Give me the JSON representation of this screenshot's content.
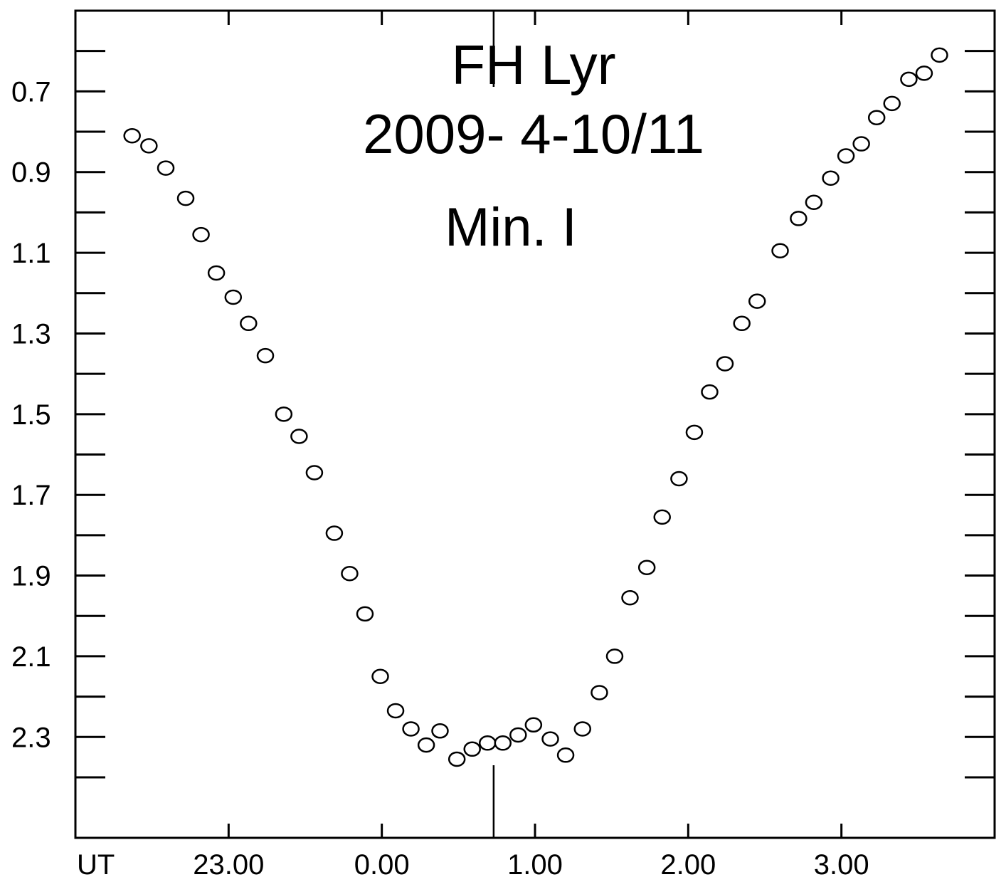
{
  "chart_data": {
    "type": "scatter",
    "title": "FH Lyr",
    "subtitle": "2009- 4-10/11",
    "annotation": "Min. I",
    "xlabel": "UT",
    "ylabel": "",
    "x_tick_labels": [
      "23.00",
      "0.00",
      "1.00",
      "2.00",
      "3.00"
    ],
    "x_tick_values": [
      23.0,
      24.0,
      25.0,
      26.0,
      27.0
    ],
    "y_tick_labels": [
      "0.7",
      "0.9",
      "1.1",
      "1.3",
      "1.5",
      "1.7",
      "1.9",
      "2.1",
      "2.3"
    ],
    "y_tick_values": [
      0.7,
      0.9,
      1.1,
      1.3,
      1.5,
      1.7,
      1.9,
      2.1,
      2.3
    ],
    "xlim": [
      22.0,
      28.0
    ],
    "ylim": [
      0.5,
      2.55
    ],
    "y_inverted": true,
    "minimum_marker_ut": 24.73,
    "marker_style": "open-circle",
    "grid": false,
    "series": [
      {
        "points": [
          [
            22.37,
            0.81
          ],
          [
            22.48,
            0.835
          ],
          [
            22.59,
            0.89
          ],
          [
            22.72,
            0.965
          ],
          [
            22.82,
            1.055
          ],
          [
            22.92,
            1.15
          ],
          [
            23.03,
            1.21
          ],
          [
            23.13,
            1.275
          ],
          [
            23.24,
            1.355
          ],
          [
            23.36,
            1.5
          ],
          [
            23.46,
            1.555
          ],
          [
            23.56,
            1.645
          ],
          [
            23.69,
            1.795
          ],
          [
            23.79,
            1.895
          ],
          [
            23.89,
            1.995
          ],
          [
            23.99,
            2.15
          ],
          [
            24.09,
            2.235
          ],
          [
            24.19,
            2.28
          ],
          [
            24.29,
            2.32
          ],
          [
            24.38,
            2.285
          ],
          [
            24.49,
            2.355
          ],
          [
            24.59,
            2.33
          ],
          [
            24.69,
            2.315
          ],
          [
            24.79,
            2.315
          ],
          [
            24.89,
            2.295
          ],
          [
            24.99,
            2.27
          ],
          [
            25.1,
            2.305
          ],
          [
            25.2,
            2.345
          ],
          [
            25.31,
            2.28
          ],
          [
            25.42,
            2.19
          ],
          [
            25.52,
            2.1
          ],
          [
            25.62,
            1.955
          ],
          [
            25.73,
            1.88
          ],
          [
            25.83,
            1.755
          ],
          [
            25.94,
            1.66
          ],
          [
            26.04,
            1.545
          ],
          [
            26.14,
            1.445
          ],
          [
            26.24,
            1.375
          ],
          [
            26.35,
            1.275
          ],
          [
            26.45,
            1.22
          ],
          [
            26.6,
            1.095
          ],
          [
            26.72,
            1.015
          ],
          [
            26.82,
            0.975
          ],
          [
            26.93,
            0.915
          ],
          [
            27.03,
            0.86
          ],
          [
            27.13,
            0.83
          ],
          [
            27.23,
            0.765
          ],
          [
            27.33,
            0.73
          ],
          [
            27.44,
            0.67
          ],
          [
            27.54,
            0.655
          ],
          [
            27.64,
            0.61
          ]
        ]
      }
    ]
  }
}
